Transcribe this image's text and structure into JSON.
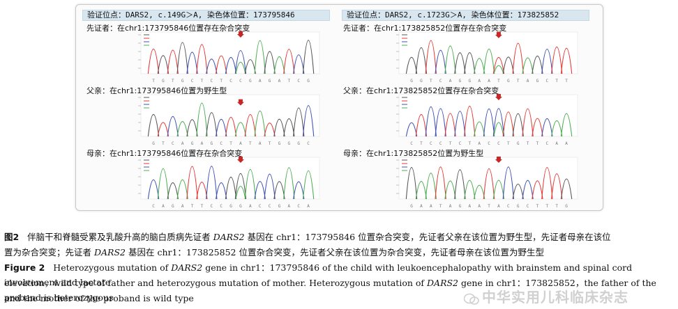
{
  "panels": [
    {
      "header": "验证位点：DARS2, c.149G＞A, 染色体位置：173795846",
      "traces": [
        {
          "title": "先证者：在chr1:173795846位置存在杂合突变",
          "genotype": "heterozygous"
        },
        {
          "title": "父亲：在chr1:173795846位置为野生型",
          "genotype": "wild"
        },
        {
          "title": "母亲：在chr1:173795846位置存在杂合突变",
          "genotype": "heterozygous"
        }
      ]
    },
    {
      "header": "验证位点：DARS2, c.1723G＞A, 染色体位置：173825852",
      "traces": [
        {
          "title": "先证者：在chr1:173825852位置存在杂合突变",
          "genotype": "heterozygous"
        },
        {
          "title": "父亲：在chr1:173825852位置存在杂合突变",
          "genotype": "heterozygous"
        },
        {
          "title": "母亲：在chr1:173825852位置为野生型",
          "genotype": "wild"
        }
      ]
    }
  ],
  "caption": {
    "zh_label": "图2",
    "zh_text_a": "伴脑干和脊髓受累及乳酸升高的脑白质病先证者",
    "zh_gene": "DARS2",
    "zh_text_b": "基因在 chr1：173795846 位置杂合突变，先证者父亲在该位置为野生型，先证者母亲在该位",
    "zh_line2_a": "置为杂合突变；先证者",
    "zh_line2_gene": "DARS2",
    "zh_line2_b": "基因在 chr1：173825852 位置杂合突变，先证者父亲在该位置为杂合突变，先证者母亲在该位置为野生型",
    "en_label": "Figure 2",
    "en_text_a": "Heterozygous mutation of",
    "en_gene": "DARS2",
    "en_text_b": "gene in chr1：173795846 of the child with leukoencephalopathy with brainstem and spinal cord involvement and lactate",
    "en_line2_a": "elevation，wild type of father and heterozygous mutation of mother. Heterozygous mutation of",
    "en_line2_gene": "DARS2",
    "en_line2_b": "gene in chr1：173825852，the father of the proband is heterozygous",
    "en_line3": "and the mother of the proband is wild type"
  },
  "watermark": {
    "text": "中华实用儿科临床杂志"
  },
  "colors": {
    "A": "#4caf50",
    "C": "#3f51b5",
    "G": "#555555",
    "T": "#e53935",
    "arrow": "#c62828"
  }
}
